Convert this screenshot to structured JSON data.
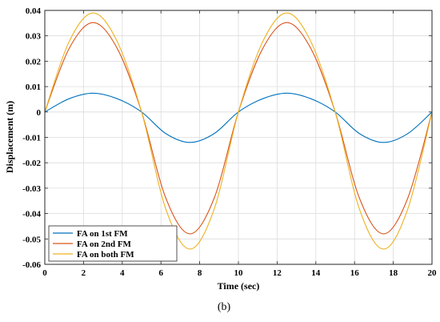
{
  "chart_data": {
    "type": "line",
    "xlabel": "Time (sec)",
    "ylabel": "Displacement (m)",
    "xlim": [
      0,
      20
    ],
    "ylim": [
      -0.06,
      0.04
    ],
    "x_ticks": [
      0,
      2,
      4,
      6,
      8,
      10,
      12,
      14,
      16,
      18,
      20
    ],
    "y_ticks": [
      0.04,
      0.03,
      0.02,
      0.01,
      0,
      -0.01,
      -0.02,
      -0.03,
      -0.04,
      -0.05,
      -0.06
    ],
    "x_tick_labels": [
      "0",
      "2",
      "4",
      "6",
      "8",
      "10",
      "12",
      "14",
      "16",
      "18",
      "20"
    ],
    "y_tick_labels": [
      "0.04",
      "0.03",
      "0.02",
      "0.01",
      "0",
      "-0.01",
      "-0.02",
      "-0.03",
      "-0.04",
      "-0.05",
      "-0.06"
    ],
    "grid": true,
    "legend_position": "bottom-left",
    "series": [
      {
        "name": "FA on 1st FM",
        "color": "#0072BD",
        "x": [
          0,
          1.25,
          2.5,
          3.75,
          5,
          6.25,
          7.5,
          8.75,
          10,
          11.25,
          12.5,
          13.75,
          15,
          16.25,
          17.5,
          18.75,
          20
        ],
        "y": [
          0,
          0.0052,
          0.0074,
          0.0052,
          0,
          -0.0085,
          -0.012,
          -0.0085,
          0,
          0.0052,
          0.0074,
          0.0052,
          0,
          -0.0085,
          -0.012,
          -0.0085,
          0
        ]
      },
      {
        "name": "FA on 2nd FM",
        "color": "#D95319",
        "x": [
          0,
          1.25,
          2.5,
          3.75,
          5,
          6.25,
          7.5,
          8.75,
          10,
          11.25,
          12.5,
          13.75,
          15,
          16.25,
          17.5,
          18.75,
          20
        ],
        "y": [
          0,
          0.0249,
          0.0352,
          0.0249,
          0,
          -0.0339,
          -0.048,
          -0.0339,
          0,
          0.0249,
          0.0352,
          0.0249,
          0,
          -0.0339,
          -0.048,
          -0.0339,
          0
        ]
      },
      {
        "name": "FA on both FM",
        "color": "#EDB120",
        "x": [
          0,
          1.25,
          2.5,
          3.75,
          5,
          6.25,
          7.5,
          8.75,
          10,
          11.25,
          12.5,
          13.75,
          15,
          16.25,
          17.5,
          18.75,
          20
        ],
        "y": [
          0,
          0.0276,
          0.039,
          0.0276,
          0,
          -0.0382,
          -0.054,
          -0.0382,
          0,
          0.0276,
          0.039,
          0.0276,
          0,
          -0.0382,
          -0.054,
          -0.0382,
          0
        ]
      }
    ]
  },
  "caption": "(b)"
}
